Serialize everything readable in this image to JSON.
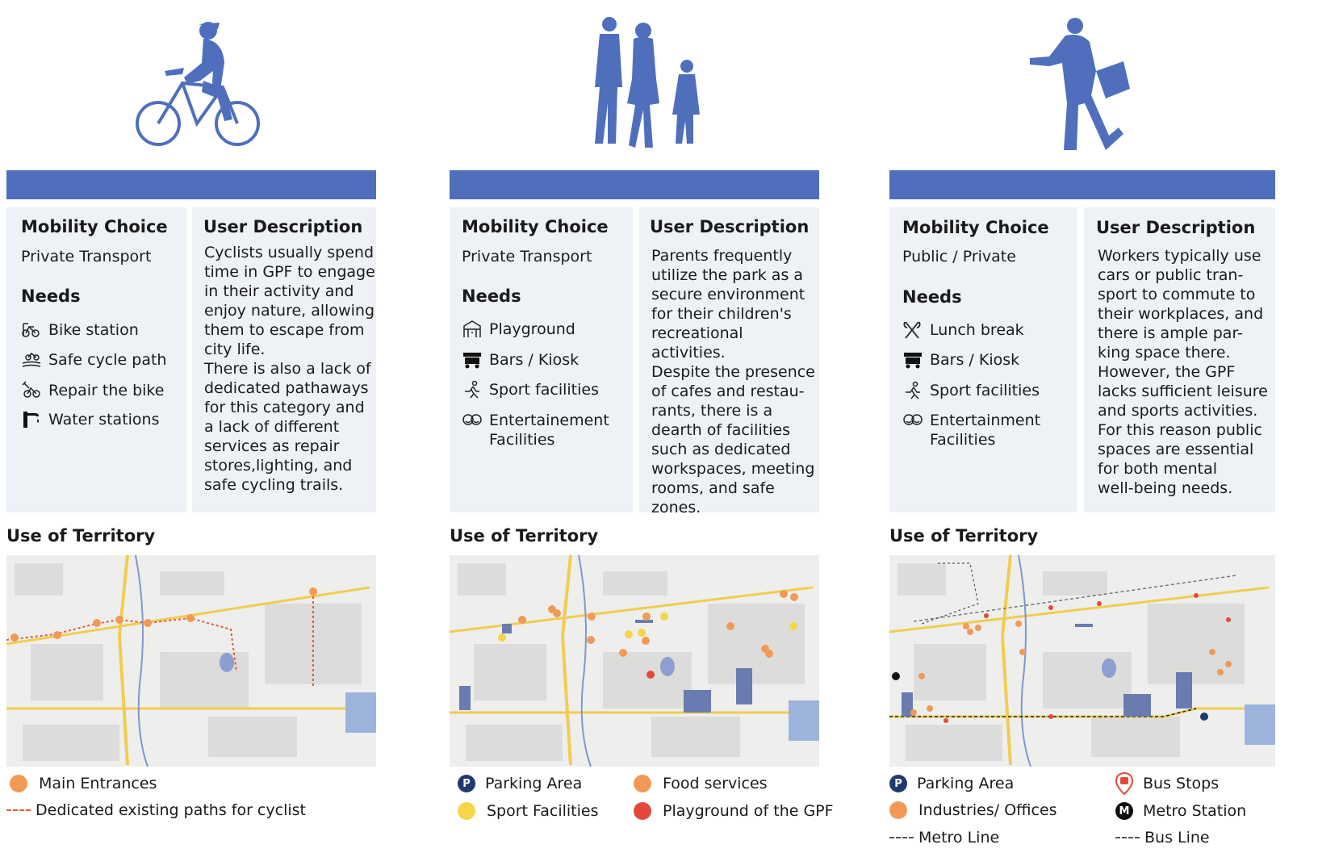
{
  "colors": {
    "accent": "#4f6fbd",
    "card": "#eef2f7",
    "orange": "#f29a55",
    "yellow": "#f5d64a",
    "red": "#e5483a",
    "navy": "#1f3a6b",
    "cycle_path": "#e05b3a"
  },
  "columns": [
    {
      "figure_icon": "cyclist-icon",
      "mobility_heading": "Mobility Choice",
      "mobility_value": "Private Transport",
      "needs_heading": "Needs",
      "needs": [
        {
          "icon": "bike-station-icon",
          "label": "Bike station"
        },
        {
          "icon": "cycle-path-icon",
          "label": "Safe cycle path"
        },
        {
          "icon": "repair-bike-icon",
          "label": "Repair the bike"
        },
        {
          "icon": "water-station-icon",
          "label": "Water stations"
        }
      ],
      "description_heading": "User Description",
      "description": "Cyclists usually spend\ntime in GPF to engage\nin their activity and\nenjoy nature, allowing\nthem to escape from\ncity life.\nThere is also a lack of\ndedicated pathaways\nfor this category and\na lack of different\nservices as repair\nstores,lighting, and\nsafe cycling trails.",
      "territory_heading": "Use of Territory",
      "legend": [
        {
          "type": "dot",
          "color": "#f29a55",
          "label": "Main Entrances"
        },
        {
          "type": "line",
          "color": "#e05b3a",
          "label": "Dedicated existing paths for cyclist"
        }
      ]
    },
    {
      "figure_icon": "family-icon",
      "mobility_heading": "Mobility Choice",
      "mobility_value": "Private Transport",
      "needs_heading": "Needs",
      "needs": [
        {
          "icon": "playground-icon",
          "label": "Playground"
        },
        {
          "icon": "kiosk-icon",
          "label": "Bars / Kiosk"
        },
        {
          "icon": "sport-icon",
          "label": "Sport facilities"
        },
        {
          "icon": "entertainment-icon",
          "label": "Entertainement\nFacilities"
        }
      ],
      "description_heading": "User Description",
      "description": "Parents frequently\nutilize the park as a\nsecure environment\nfor their children's\nrecreational activities.\nDespite the presence\nof cafes and restau-\nrants, there is a\ndearth of facilities\nsuch as dedicated\nworkspaces, meeting\nrooms, and safe\nzones.",
      "territory_heading": "Use of Territory",
      "legend": [
        {
          "type": "pin",
          "color": "#1f3a6b",
          "glyph": "P",
          "label": "Parking Area"
        },
        {
          "type": "dot",
          "color": "#f29a55",
          "label": "Food services"
        },
        {
          "type": "dot",
          "color": "#f5d64a",
          "label": "Sport Facilities"
        },
        {
          "type": "dot",
          "color": "#e5483a",
          "label": "Playground of the GPF"
        }
      ]
    },
    {
      "figure_icon": "worker-icon",
      "mobility_heading": "Mobility Choice",
      "mobility_value": "Public / Private",
      "needs_heading": "Needs",
      "needs": [
        {
          "icon": "cutlery-icon",
          "label": "Lunch break"
        },
        {
          "icon": "kiosk-icon",
          "label": "Bars / Kiosk"
        },
        {
          "icon": "sport-icon",
          "label": "Sport facilities"
        },
        {
          "icon": "entertainment-icon",
          "label": "Entertainment\nFacilities"
        }
      ],
      "description_heading": "User Description",
      "description": "Workers typically use\ncars or public tran-\nsport to commute to\ntheir workplaces, and\nthere is ample par-\nking space there.\nHowever, the GPF\nlacks sufficient leisure\nand sports activities.\nFor this reason public\nspaces are essential\nfor both mental\nwell-being needs.",
      "territory_heading": "Use of Territory",
      "legend": [
        {
          "type": "pin",
          "color": "#1f3a6b",
          "glyph": "P",
          "label": "Parking Area"
        },
        {
          "type": "busstop",
          "color": "#e5483a",
          "label": "Bus Stops"
        },
        {
          "type": "dot",
          "color": "#f29a55",
          "label": "Industries/ Offices"
        },
        {
          "type": "pin",
          "color": "#111111",
          "glyph": "M",
          "label": "Metro Station"
        },
        {
          "type": "line",
          "color": "#555555",
          "label": "Metro Line"
        },
        {
          "type": "line",
          "color": "#555555",
          "label": "Bus Line"
        }
      ]
    }
  ]
}
